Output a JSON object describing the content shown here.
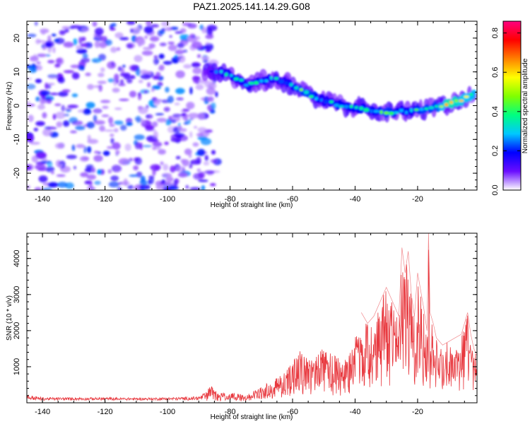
{
  "title": "PAZ1.2025.141.14.29.G08",
  "chart_data": [
    {
      "type": "heatmap",
      "xlabel": "Height of straight line (km)",
      "ylabel": "Frequency (Hz)",
      "xlim": [
        -145,
        -1
      ],
      "ylim": [
        -25,
        25
      ],
      "x_ticks": [
        -140,
        -120,
        -100,
        -80,
        -60,
        -40,
        -20
      ],
      "y_ticks": [
        -20,
        -10,
        0,
        10,
        20
      ],
      "colorbar": {
        "label": "Normalized spectral amplitude",
        "range": [
          0,
          0.86
        ],
        "ticks": [
          0.0,
          0.2,
          0.4,
          0.6,
          0.8
        ],
        "colormap": [
          "#ffffff",
          "#6a0dff",
          "#0000ff",
          "#00c8ff",
          "#00ff80",
          "#80ff00",
          "#ffff00",
          "#ff8000",
          "#ff0000",
          "#ff0080"
        ]
      },
      "noise_region_x": [
        -145,
        -88
      ],
      "ridge": {
        "x": [
          -88,
          -82,
          -78,
          -74,
          -70,
          -66,
          -62,
          -58,
          -54,
          -50,
          -46,
          -42,
          -38,
          -34,
          -30,
          -26,
          -22,
          -18,
          -14,
          -10,
          -6,
          -2
        ],
        "y": [
          10,
          10,
          8,
          6,
          7.5,
          8,
          7,
          5,
          3,
          1.5,
          0.5,
          -0.5,
          -1,
          -1.5,
          -2,
          -1.8,
          -1.5,
          -1,
          -0.5,
          0.5,
          1.5,
          3.5
        ],
        "amplitude": [
          0.15,
          0.3,
          0.35,
          0.3,
          0.35,
          0.3,
          0.3,
          0.4,
          0.4,
          0.3,
          0.35,
          0.35,
          0.35,
          0.35,
          0.4,
          0.35,
          0.35,
          0.4,
          0.4,
          0.65,
          0.55,
          0.5
        ]
      }
    },
    {
      "type": "line",
      "xlabel": "Height of straight line (km)",
      "ylabel": "SNR (10 * v/v)",
      "xlim": [
        -145,
        -1
      ],
      "ylim": [
        0,
        4700
      ],
      "x_ticks": [
        -140,
        -120,
        -100,
        -80,
        -60,
        -40,
        -20
      ],
      "y_ticks": [
        1000,
        2000,
        3000,
        4000
      ],
      "color": "#e8393f",
      "series": [
        {
          "x": [
            -145,
            -140,
            -130,
            -120,
            -110,
            -100,
            -95,
            -90,
            -88,
            -86,
            -84,
            -82,
            -80,
            -78,
            -76,
            -74,
            -72,
            -70,
            -68,
            -66,
            -64,
            -62,
            -60,
            -58,
            -56,
            -54,
            -52,
            -50,
            -48,
            -46,
            -44,
            -42,
            -40,
            -38,
            -36,
            -34,
            -32,
            -30,
            -28,
            -26,
            -25,
            -24,
            -23,
            -22,
            -21,
            -20,
            -19,
            -18,
            -17,
            -16.5,
            -16,
            -15,
            -14,
            -12,
            -10,
            -8,
            -6,
            -4,
            -3,
            -2,
            -1
          ],
          "y": [
            200,
            120,
            120,
            120,
            110,
            120,
            130,
            150,
            250,
            550,
            300,
            280,
            250,
            300,
            260,
            250,
            350,
            500,
            600,
            700,
            900,
            1000,
            1100,
            1500,
            1300,
            1200,
            1400,
            1600,
            1400,
            1300,
            1200,
            1300,
            2000,
            2500,
            2200,
            2400,
            2800,
            3200,
            2800,
            2400,
            4300,
            3600,
            4200,
            3000,
            2400,
            3600,
            3100,
            2600,
            2000,
            4700,
            2500,
            2200,
            1800,
            1600,
            1700,
            1800,
            1900,
            2500,
            1900,
            1500,
            1300
          ]
        }
      ]
    }
  ]
}
